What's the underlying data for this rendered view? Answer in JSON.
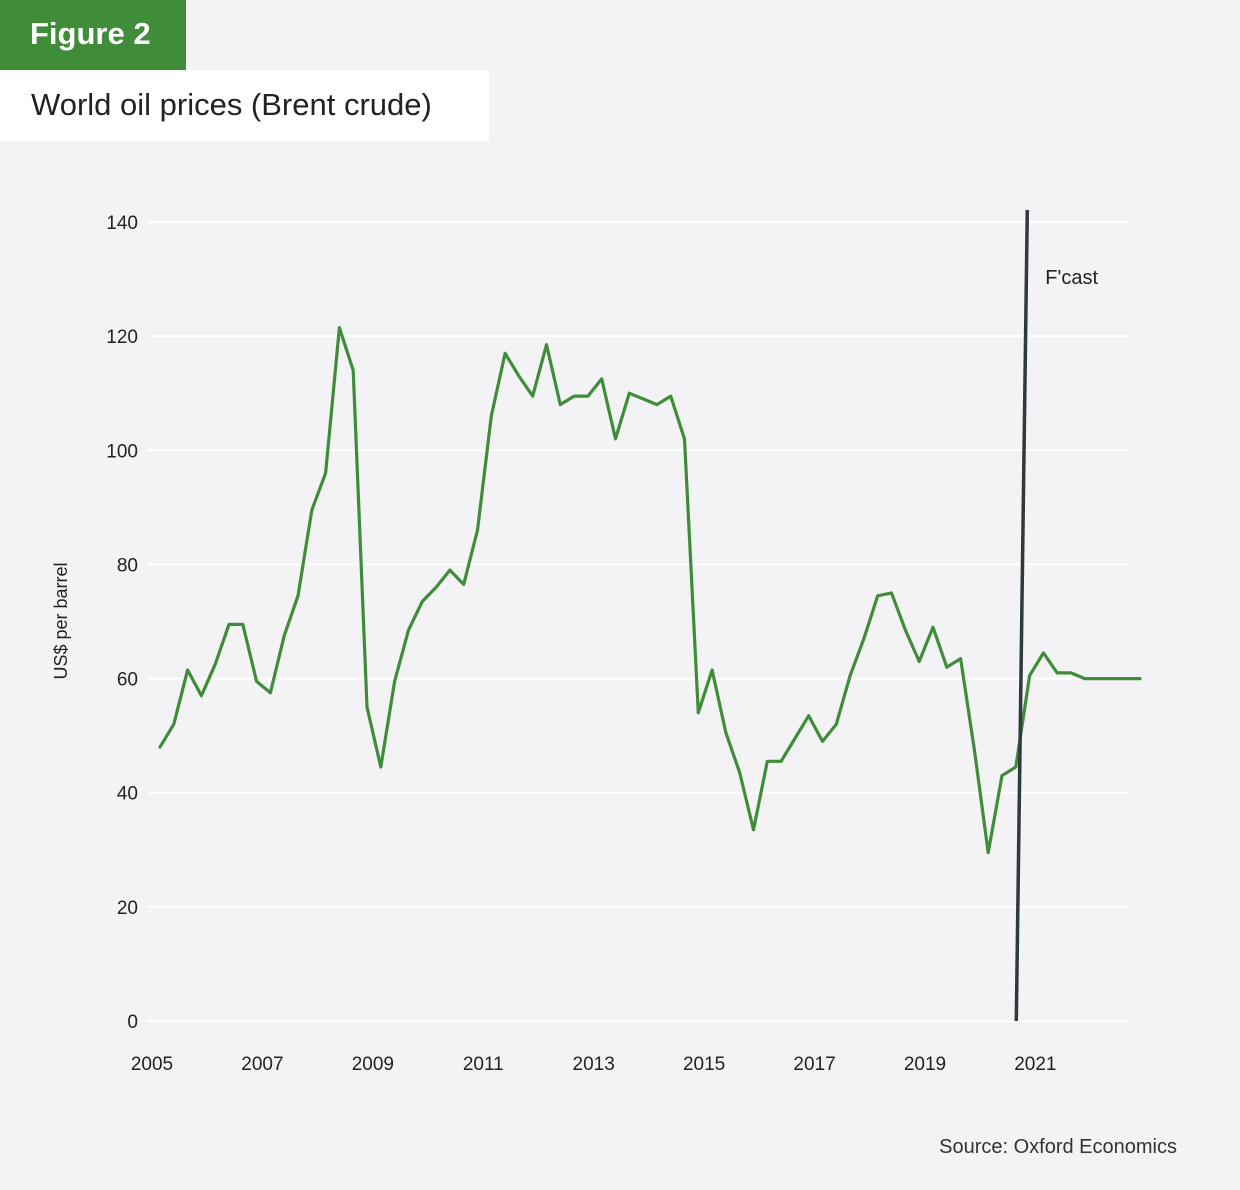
{
  "figure_label": "Figure 2",
  "source": "Source: Oxford Economics",
  "colors": {
    "accent": "#3f8d38",
    "line": "#3f8d38",
    "forecast_line": "#2d3a40",
    "grid": "#ffffff",
    "background": "#f3f3f5"
  },
  "chart_data": {
    "type": "line",
    "title": "World oil prices (Brent crude)",
    "xlabel": "",
    "ylabel": "US$ per barrel",
    "xlim": [
      2005,
      2022.75
    ],
    "ylim": [
      0,
      140
    ],
    "x_ticks": [
      "2005",
      "2007",
      "2009",
      "2011",
      "2013",
      "2015",
      "2017",
      "2019",
      "2021"
    ],
    "y_ticks": [
      "0",
      "20",
      "40",
      "60",
      "80",
      "100",
      "120",
      "140"
    ],
    "grid": true,
    "forecast_marker": {
      "label": "F'cast",
      "x": 2020.6
    },
    "series": [
      {
        "x": [
          2005.0,
          2005.25,
          2005.5,
          2005.75,
          2006.0,
          2006.25,
          2006.5,
          2006.75,
          2007.0,
          2007.25,
          2007.5,
          2007.625,
          2007.75,
          2008.0,
          2008.25,
          2008.5,
          2008.75,
          2009.0,
          2009.25,
          2009.5,
          2009.75,
          2010.0,
          2010.25,
          2010.5,
          2010.75,
          2011.0,
          2011.25,
          2011.5,
          2011.75,
          2012.0,
          2012.25,
          2012.5,
          2012.75,
          2013.0,
          2013.25,
          2013.5,
          2013.75,
          2014.0,
          2014.25,
          2014.5,
          2014.75,
          2015.0,
          2015.25,
          2015.5,
          2015.75,
          2016.0,
          2016.25,
          2016.5,
          2016.75,
          2017.0,
          2017.25,
          2017.5,
          2017.75,
          2018.0,
          2018.25,
          2018.5,
          2018.75,
          2019.0,
          2019.25,
          2019.5,
          2019.75,
          2020.0,
          2020.25,
          2020.5,
          2020.75,
          2021.0,
          2021.25,
          2021.5,
          2021.75,
          2022.0,
          2022.25,
          2022.5,
          2022.75
        ],
        "values": [
          48,
          52,
          61.5,
          57,
          62.5,
          69.5,
          69.5,
          59.5,
          57.5,
          67.5,
          74.5,
          82,
          89.5,
          96,
          121.5,
          114,
          55,
          44.5,
          59.5,
          68.5,
          73.5,
          76,
          79,
          76.5,
          86,
          106,
          117,
          113,
          109.5,
          118.5,
          108,
          109.5,
          109.5,
          112.5,
          102,
          110,
          109,
          108,
          109.5,
          102,
          54,
          61.5,
          50.5,
          43.5,
          33.5,
          45.5,
          45.5,
          49.5,
          53.5,
          49,
          52,
          60.5,
          67,
          74.5,
          75,
          68.5,
          63,
          69,
          62,
          63.5,
          47.5,
          29.5,
          43,
          44.5,
          60.5,
          64.5,
          61,
          61,
          60,
          60,
          60,
          60,
          60
        ]
      }
    ]
  }
}
